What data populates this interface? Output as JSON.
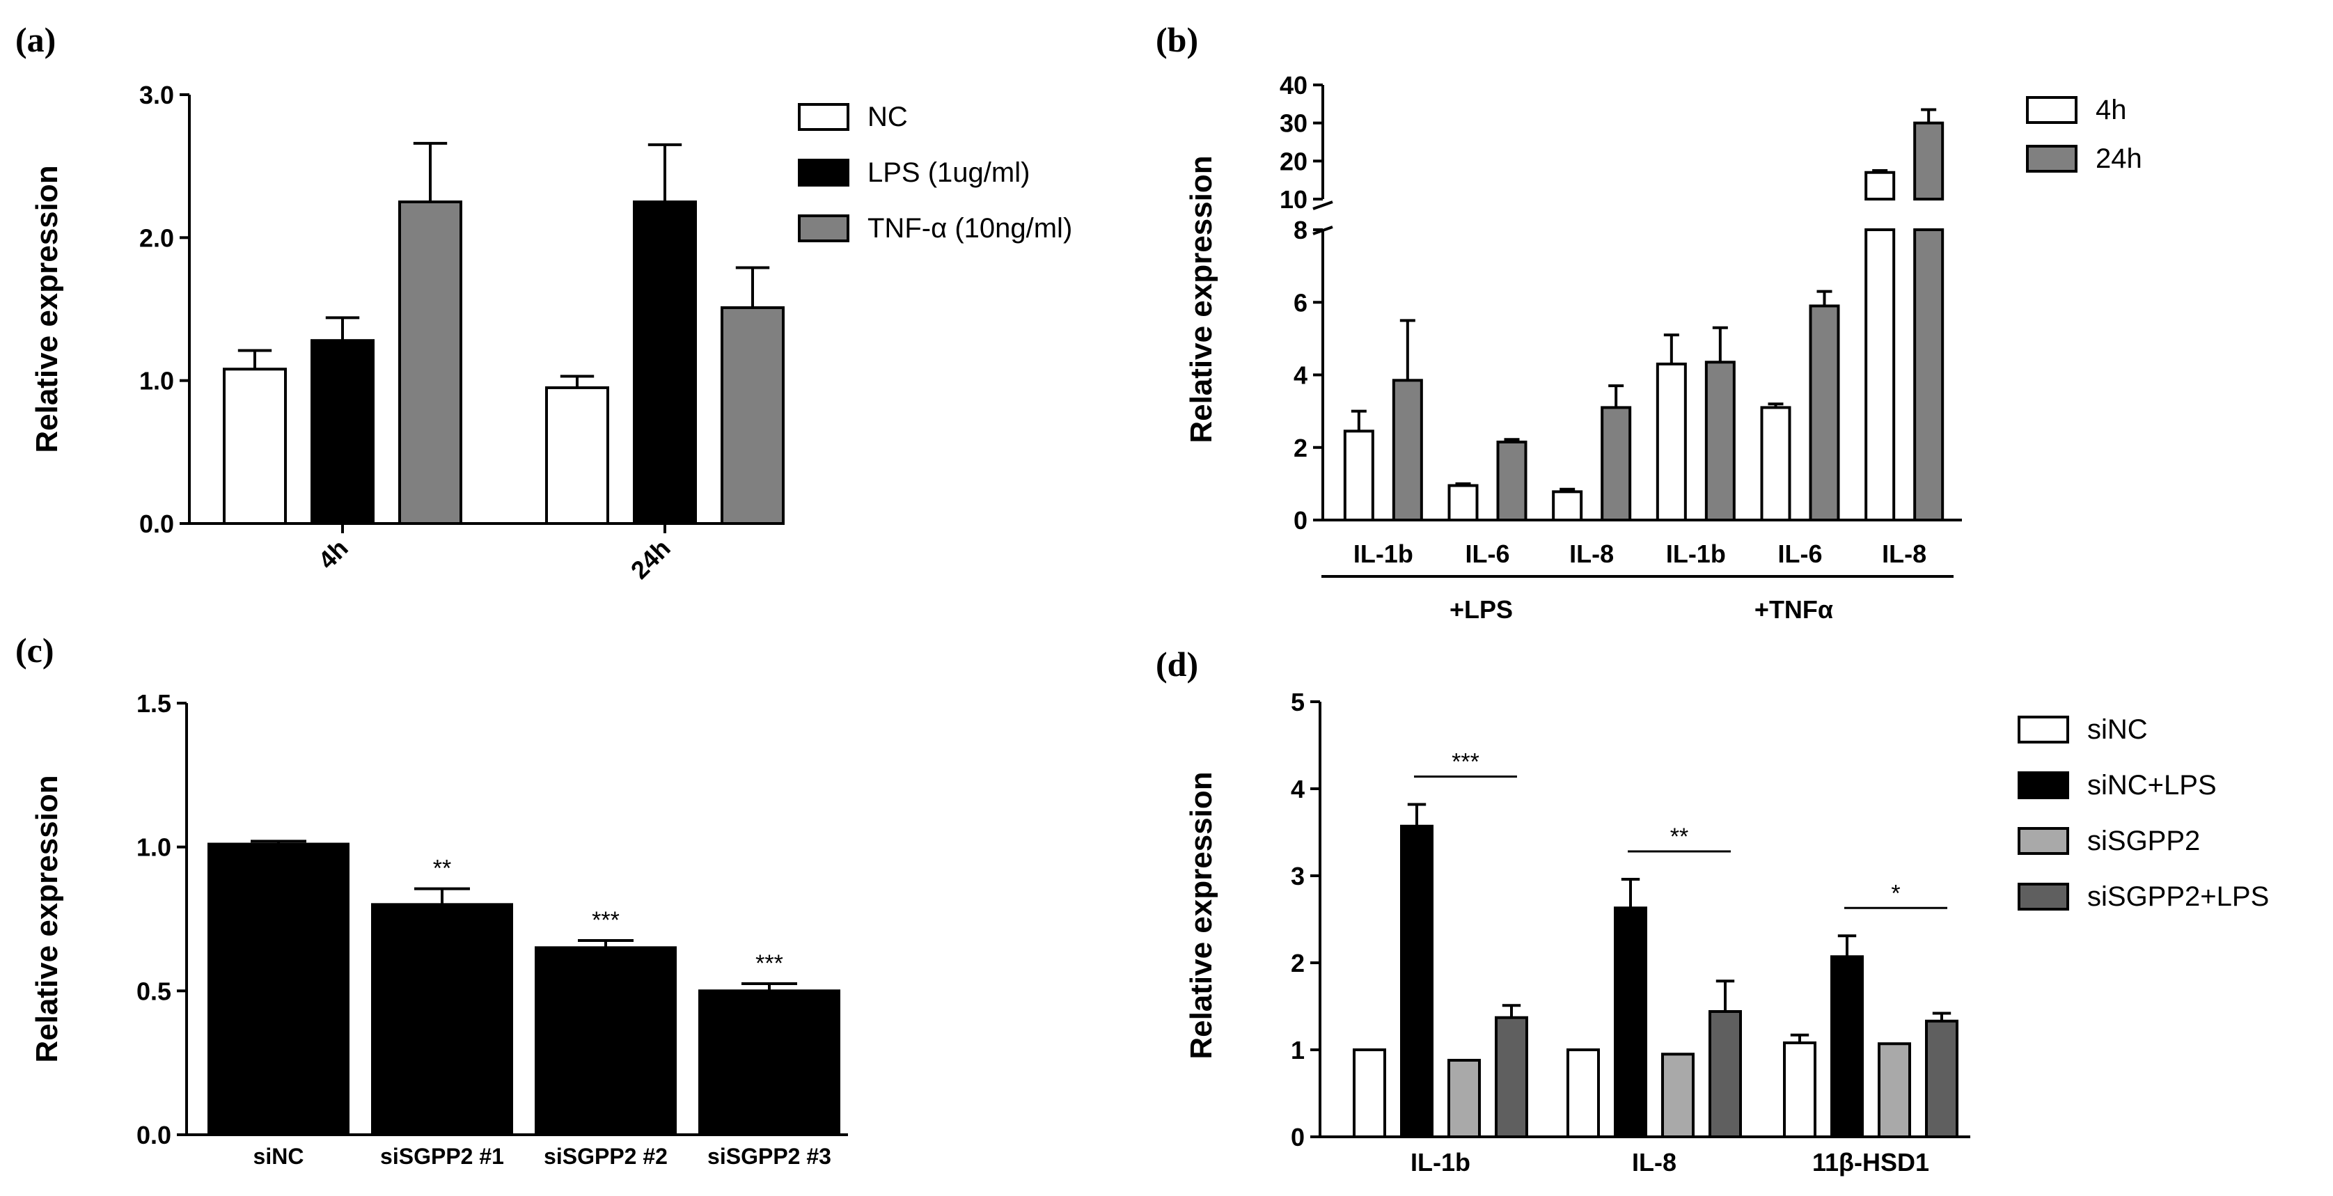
{
  "panels": {
    "a": {
      "label": "(a)"
    },
    "b": {
      "label": "(b)"
    },
    "c": {
      "label": "(c)"
    },
    "d": {
      "label": "(d)"
    }
  },
  "chart_data": [
    {
      "id": "a",
      "type": "bar",
      "ylabel": "Relative expression",
      "ylim": [
        0,
        3
      ],
      "yticks": [
        "0.0",
        "1.0",
        "2.0",
        "3.0"
      ],
      "categories": [
        "4h",
        "24h"
      ],
      "series": [
        {
          "name": "NC",
          "color": "#ffffff",
          "values": [
            1.08,
            0.95
          ],
          "errors": [
            0.13,
            0.08
          ]
        },
        {
          "name": "LPS (1ug/ml)",
          "color": "#000000",
          "values": [
            1.28,
            2.25
          ],
          "errors": [
            0.16,
            0.4
          ]
        },
        {
          "name": "TNF-α (10ng/ml)",
          "color": "#808080",
          "values": [
            2.25,
            1.51
          ],
          "errors": [
            0.41,
            0.28
          ]
        }
      ]
    },
    {
      "id": "b",
      "type": "bar",
      "ylabel": "Relative expression",
      "axis_break": {
        "lower": [
          0,
          8
        ],
        "upper": [
          10,
          40
        ]
      },
      "yticks_lower": [
        "0",
        "2",
        "4",
        "6",
        "8"
      ],
      "yticks_upper": [
        "10",
        "20",
        "30",
        "40"
      ],
      "categories": [
        "IL-1b",
        "IL-6",
        "IL-8",
        "IL-1b",
        "IL-6",
        "IL-8"
      ],
      "groups": [
        {
          "label": "+LPS",
          "span": [
            0,
            2
          ]
        },
        {
          "label": "+TNFα",
          "span": [
            3,
            5
          ]
        }
      ],
      "series": [
        {
          "name": "4h",
          "color": "#ffffff",
          "values": [
            2.45,
            0.95,
            0.78,
            4.3,
            3.1,
            17
          ],
          "errors": [
            0.55,
            0.05,
            0.07,
            0.8,
            0.1,
            0.5
          ]
        },
        {
          "name": "24h",
          "color": "#808080",
          "values": [
            3.85,
            2.15,
            3.1,
            4.35,
            5.9,
            30
          ],
          "errors": [
            1.65,
            0.07,
            0.6,
            0.95,
            0.4,
            3.5
          ]
        }
      ]
    },
    {
      "id": "c",
      "type": "bar",
      "ylabel": "Relative expression",
      "ylim": [
        0,
        1.5
      ],
      "yticks": [
        "0.0",
        "0.5",
        "1.0",
        "1.5"
      ],
      "categories": [
        "siNC",
        "siSGPP2 #1",
        "siSGPP2 #2",
        "siSGPP2 #3"
      ],
      "series": [
        {
          "name": "expression",
          "color": "#000000",
          "values": [
            1.01,
            0.8,
            0.65,
            0.5
          ],
          "errors": [
            0.01,
            0.055,
            0.025,
            0.025
          ]
        }
      ],
      "annotations": [
        "",
        "**",
        "***",
        "***"
      ]
    },
    {
      "id": "d",
      "type": "bar",
      "ylabel": "Relative expression",
      "ylim": [
        0,
        5
      ],
      "yticks": [
        "0",
        "1",
        "2",
        "3",
        "4",
        "5"
      ],
      "categories": [
        "IL-1b",
        "IL-8",
        "11β-HSD1"
      ],
      "series": [
        {
          "name": "siNC",
          "color": "#ffffff",
          "values": [
            1.0,
            1.0,
            1.08
          ],
          "errors": [
            0,
            0,
            0.09
          ]
        },
        {
          "name": "siNC+LPS",
          "color": "#000000",
          "values": [
            3.57,
            2.63,
            2.07
          ],
          "errors": [
            0.25,
            0.33,
            0.24
          ]
        },
        {
          "name": "siSGPP2",
          "color": "#a9a9a9",
          "values": [
            0.88,
            0.95,
            1.07
          ],
          "errors": [
            0,
            0,
            0
          ]
        },
        {
          "name": "siSGPP2+LPS",
          "color": "#5f5f5f",
          "values": [
            1.37,
            1.44,
            1.33
          ],
          "errors": [
            0.14,
            0.35,
            0.09
          ]
        }
      ],
      "significance": [
        "***",
        "**",
        "*"
      ]
    }
  ]
}
